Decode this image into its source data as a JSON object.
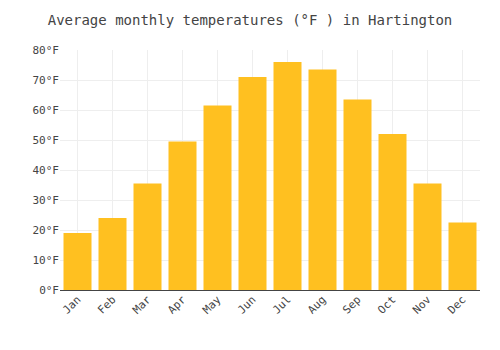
{
  "chart_data": {
    "type": "bar",
    "title": "Average monthly temperatures (°F ) in Hartington",
    "categories": [
      "Jan",
      "Feb",
      "Mar",
      "Apr",
      "May",
      "Jun",
      "Jul",
      "Aug",
      "Sep",
      "Oct",
      "Nov",
      "Dec"
    ],
    "values": [
      19,
      24,
      35.5,
      49.5,
      61.5,
      71,
      76,
      73.5,
      63.5,
      52,
      35.5,
      22.5
    ],
    "color": "#FFC020",
    "ylim": [
      0,
      80
    ],
    "yticks": [
      {
        "value": 0,
        "label": "0°F"
      },
      {
        "value": 10,
        "label": "10°F"
      },
      {
        "value": 20,
        "label": "20°F"
      },
      {
        "value": 30,
        "label": "30°F"
      },
      {
        "value": 40,
        "label": "40°F"
      },
      {
        "value": 50,
        "label": "50°F"
      },
      {
        "value": 60,
        "label": "60°F"
      },
      {
        "value": 70,
        "label": "70°F"
      },
      {
        "value": 80,
        "label": "80°F"
      }
    ],
    "grid": true
  }
}
